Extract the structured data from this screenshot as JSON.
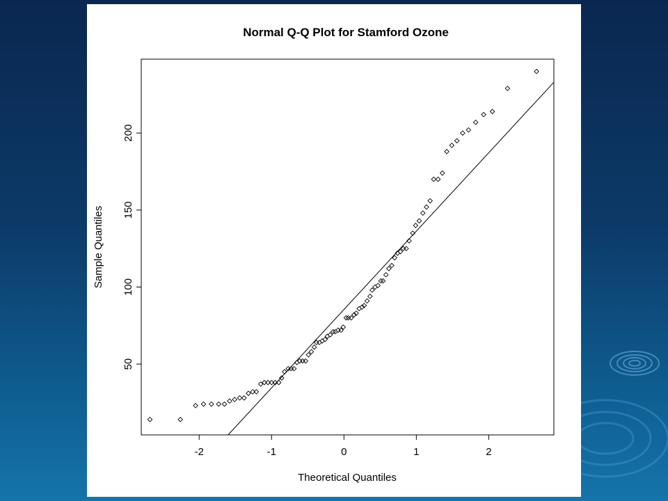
{
  "chart_data": {
    "type": "scatter",
    "title": "Normal Q-Q Plot for Stamford Ozone",
    "xlabel": "Theoretical Quantiles",
    "ylabel": "Sample Quantiles",
    "xlim": [
      -2.8,
      2.9
    ],
    "ylim": [
      4,
      248
    ],
    "xticks": [
      -2,
      -1,
      0,
      1,
      2
    ],
    "yticks": [
      50,
      100,
      150,
      200
    ],
    "grid": false,
    "reference_line": {
      "x": [
        -1.6,
        2.9
      ],
      "y": [
        4,
        233
      ]
    },
    "points": [
      [
        -2.68,
        14
      ],
      [
        -2.26,
        14
      ],
      [
        -2.05,
        23
      ],
      [
        -1.94,
        24
      ],
      [
        -1.83,
        24
      ],
      [
        -1.73,
        24
      ],
      [
        -1.65,
        24
      ],
      [
        -1.58,
        26
      ],
      [
        -1.51,
        27
      ],
      [
        -1.44,
        28
      ],
      [
        -1.38,
        28
      ],
      [
        -1.32,
        31
      ],
      [
        -1.26,
        32
      ],
      [
        -1.21,
        32
      ],
      [
        -1.15,
        37
      ],
      [
        -1.1,
        38
      ],
      [
        -1.05,
        38
      ],
      [
        -1.0,
        38
      ],
      [
        -0.95,
        38
      ],
      [
        -0.9,
        38
      ],
      [
        -0.86,
        41
      ],
      [
        -0.82,
        45
      ],
      [
        -0.77,
        47
      ],
      [
        -0.73,
        47
      ],
      [
        -0.69,
        47
      ],
      [
        -0.65,
        51
      ],
      [
        -0.61,
        52
      ],
      [
        -0.57,
        52
      ],
      [
        -0.53,
        52
      ],
      [
        -0.49,
        56
      ],
      [
        -0.45,
        58
      ],
      [
        -0.41,
        61
      ],
      [
        -0.38,
        64
      ],
      [
        -0.34,
        64
      ],
      [
        -0.3,
        65
      ],
      [
        -0.26,
        66
      ],
      [
        -0.23,
        68
      ],
      [
        -0.19,
        69
      ],
      [
        -0.15,
        71
      ],
      [
        -0.12,
        71
      ],
      [
        -0.08,
        72
      ],
      [
        -0.04,
        72
      ],
      [
        -0.01,
        74
      ],
      [
        0.03,
        80
      ],
      [
        0.06,
        80
      ],
      [
        0.1,
        80
      ],
      [
        0.14,
        82
      ],
      [
        0.17,
        83
      ],
      [
        0.21,
        86
      ],
      [
        0.25,
        87
      ],
      [
        0.28,
        88
      ],
      [
        0.32,
        91
      ],
      [
        0.36,
        94
      ],
      [
        0.39,
        98
      ],
      [
        0.43,
        100
      ],
      [
        0.47,
        101
      ],
      [
        0.51,
        104
      ],
      [
        0.54,
        104
      ],
      [
        0.58,
        108
      ],
      [
        0.62,
        112
      ],
      [
        0.66,
        114
      ],
      [
        0.7,
        119
      ],
      [
        0.74,
        122
      ],
      [
        0.78,
        123
      ],
      [
        0.82,
        125
      ],
      [
        0.86,
        125
      ],
      [
        0.9,
        130
      ],
      [
        0.95,
        135
      ],
      [
        0.99,
        140
      ],
      [
        1.04,
        143
      ],
      [
        1.09,
        148
      ],
      [
        1.14,
        152
      ],
      [
        1.19,
        156
      ],
      [
        1.24,
        170
      ],
      [
        1.3,
        170
      ],
      [
        1.36,
        174
      ],
      [
        1.42,
        188
      ],
      [
        1.49,
        192
      ],
      [
        1.56,
        195
      ],
      [
        1.64,
        200
      ],
      [
        1.72,
        202
      ],
      [
        1.82,
        207
      ],
      [
        1.93,
        212
      ],
      [
        2.05,
        214
      ],
      [
        2.26,
        229
      ],
      [
        2.66,
        240
      ]
    ]
  }
}
